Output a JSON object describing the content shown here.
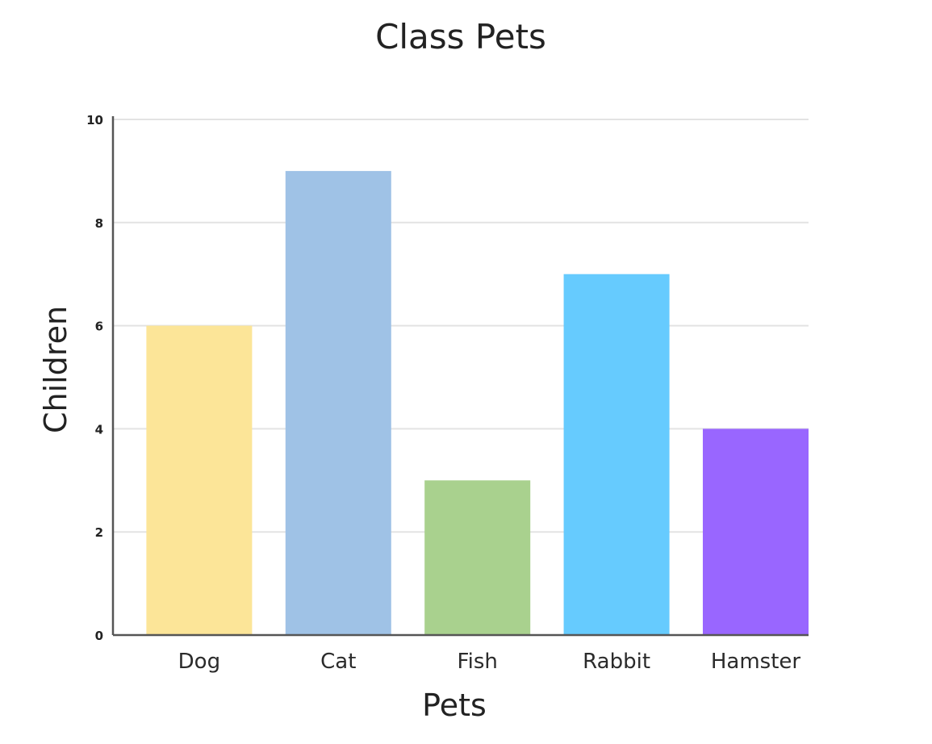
{
  "chart_data": {
    "type": "bar",
    "title": "Class Pets",
    "xlabel": "Pets",
    "ylabel": "Children",
    "categories": [
      "Dog",
      "Cat",
      "Fish",
      "Rabbit",
      "Hamster"
    ],
    "values": [
      6,
      9,
      3,
      7,
      4
    ],
    "colors": [
      "#fce598",
      "#9fc2e6",
      "#a9d18e",
      "#66cbfe",
      "#9966ff"
    ],
    "ylim": [
      0,
      10
    ],
    "yticks": [
      0,
      2,
      4,
      6,
      8,
      10
    ],
    "grid": true,
    "legend": "none"
  }
}
